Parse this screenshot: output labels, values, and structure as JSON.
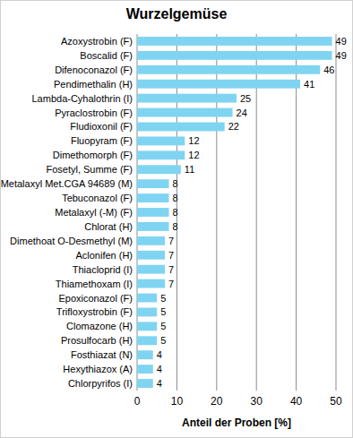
{
  "chart_data": {
    "type": "bar",
    "orientation": "horizontal",
    "title": "Wurzelgemüse",
    "xlabel": "Anteil der Proben [%]",
    "categories": [
      "Azoxystrobin (F)",
      "Boscalid (F)",
      "Difenoconazol (F)",
      "Pendimethalin (H)",
      "Lambda-Cyhalothrin (I)",
      "Pyraclostrobin (F)",
      "Fludioxonil (F)",
      "Fluopyram (F)",
      "Dimethomorph (F)",
      "Fosetyl, Summe (F)",
      "Metalaxyl Met.CGA 94689 (M)",
      "Tebuconazol (F)",
      "Metalaxyl (-M) (F)",
      "Chlorat (H)",
      "Dimethoat O-Desmethyl (M)",
      "Aclonifen (H)",
      "Thiacloprid (I)",
      "Thiamethoxam (I)",
      "Epoxiconazol (F)",
      "Trifloxystrobin (F)",
      "Clomazone (H)",
      "Prosulfocarb (H)",
      "Fosthiazat (N)",
      "Hexythiazox (A)",
      "Chlorpyrifos (I)"
    ],
    "values": [
      49,
      49,
      46,
      41,
      25,
      24,
      22,
      12,
      12,
      11,
      8,
      8,
      8,
      8,
      7,
      7,
      7,
      7,
      5,
      5,
      5,
      5,
      4,
      4,
      4
    ],
    "color": "#7fd4f2",
    "xlim": [
      0,
      50
    ],
    "xticks": [
      0,
      10,
      20,
      30,
      40,
      50
    ],
    "grid": true,
    "data_labels": true
  }
}
